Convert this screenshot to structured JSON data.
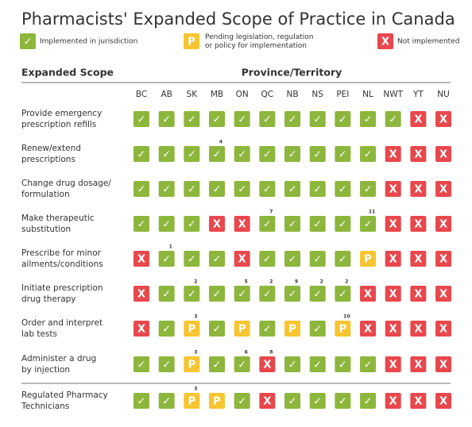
{
  "title": "Pharmacists' Expanded Scope of Practice in Canada",
  "legend": {
    "implemented": {
      "symbol": "✓",
      "label": [
        "Implemented in jurisdiction"
      ],
      "color": "#8db63c"
    },
    "pending": {
      "symbol": "P",
      "label": [
        "Pending legislation, regulation",
        "or policy for implementation"
      ],
      "color": "#f7c531"
    },
    "not": {
      "symbol": "X",
      "label": [
        "Not implemented"
      ],
      "color": "#e8474c"
    }
  },
  "header": {
    "scope": "Expanded Scope",
    "region": "Province/Territory"
  },
  "provinces": [
    "BC",
    "AB",
    "SK",
    "MB",
    "ON",
    "QC",
    "NB",
    "NS",
    "PEI",
    "NL",
    "NWT",
    "YT",
    "NU"
  ],
  "rows": [
    {
      "label": [
        "Provide emergency",
        "prescription refills"
      ],
      "cells": [
        "implemented",
        "implemented",
        "implemented",
        "implemented",
        "implemented",
        "implemented",
        "implemented",
        "implemented",
        "implemented",
        "implemented",
        "implemented",
        "not",
        "not"
      ],
      "notes": [
        null,
        null,
        null,
        null,
        null,
        null,
        null,
        null,
        null,
        null,
        null,
        null,
        null
      ]
    },
    {
      "label": [
        "Renew/extend",
        "prescriptions"
      ],
      "cells": [
        "implemented",
        "implemented",
        "implemented",
        "implemented",
        "implemented",
        "implemented",
        "implemented",
        "implemented",
        "implemented",
        "implemented",
        "not",
        "not",
        "not"
      ],
      "notes": [
        null,
        null,
        null,
        4,
        null,
        null,
        null,
        null,
        null,
        null,
        null,
        null,
        null
      ]
    },
    {
      "label": [
        "Change drug dosage/",
        "formulation"
      ],
      "cells": [
        "implemented",
        "implemented",
        "implemented",
        "implemented",
        "implemented",
        "implemented",
        "implemented",
        "implemented",
        "implemented",
        "implemented",
        "not",
        "not",
        "not"
      ],
      "notes": [
        null,
        null,
        null,
        null,
        null,
        null,
        null,
        null,
        null,
        null,
        null,
        null,
        null
      ]
    },
    {
      "label": [
        "Make therapeutic",
        "substitution"
      ],
      "cells": [
        "implemented",
        "implemented",
        "implemented",
        "not",
        "not",
        "implemented",
        "implemented",
        "implemented",
        "implemented",
        "implemented",
        "not",
        "not",
        "not"
      ],
      "notes": [
        null,
        null,
        null,
        null,
        null,
        7,
        null,
        null,
        null,
        11,
        null,
        null,
        null
      ]
    },
    {
      "label": [
        "Prescribe for minor",
        "ailments/conditions"
      ],
      "cells": [
        "not",
        "implemented",
        "implemented",
        "implemented",
        "not",
        "implemented",
        "implemented",
        "implemented",
        "implemented",
        "pending",
        "not",
        "not",
        "not"
      ],
      "notes": [
        null,
        1,
        null,
        null,
        null,
        null,
        null,
        null,
        null,
        null,
        null,
        null,
        null
      ]
    },
    {
      "label": [
        "Initiate prescription",
        "drug therapy"
      ],
      "cells": [
        "not",
        "implemented",
        "implemented",
        "implemented",
        "implemented",
        "implemented",
        "implemented",
        "implemented",
        "implemented",
        "not",
        "not",
        "not",
        "not"
      ],
      "notes": [
        null,
        null,
        2,
        null,
        5,
        2,
        9,
        2,
        2,
        null,
        null,
        null,
        null
      ]
    },
    {
      "label": [
        "Order and interpret",
        "lab tests"
      ],
      "cells": [
        "not",
        "implemented",
        "pending",
        "implemented",
        "pending",
        "implemented",
        "pending",
        "implemented",
        "pending",
        "not",
        "not",
        "not",
        "not"
      ],
      "notes": [
        null,
        null,
        3,
        null,
        null,
        null,
        null,
        null,
        10,
        null,
        null,
        null,
        null
      ]
    },
    {
      "label": [
        "Administer a drug",
        "by injection"
      ],
      "cells": [
        "implemented",
        "implemented",
        "pending",
        "implemented",
        "implemented",
        "not",
        "implemented",
        "implemented",
        "implemented",
        "implemented",
        "not",
        "not",
        "not"
      ],
      "notes": [
        null,
        null,
        3,
        null,
        6,
        8,
        null,
        null,
        null,
        null,
        null,
        null,
        null
      ]
    },
    {
      "label": [
        "Regulated Pharmacy",
        "Technicians"
      ],
      "cells": [
        "implemented",
        "implemented",
        "pending",
        "pending",
        "implemented",
        "not",
        "implemented",
        "implemented",
        "implemented",
        "implemented",
        "not",
        "not",
        "not"
      ],
      "notes": [
        null,
        null,
        3,
        null,
        null,
        null,
        null,
        null,
        null,
        null,
        null,
        null,
        null
      ]
    }
  ]
}
